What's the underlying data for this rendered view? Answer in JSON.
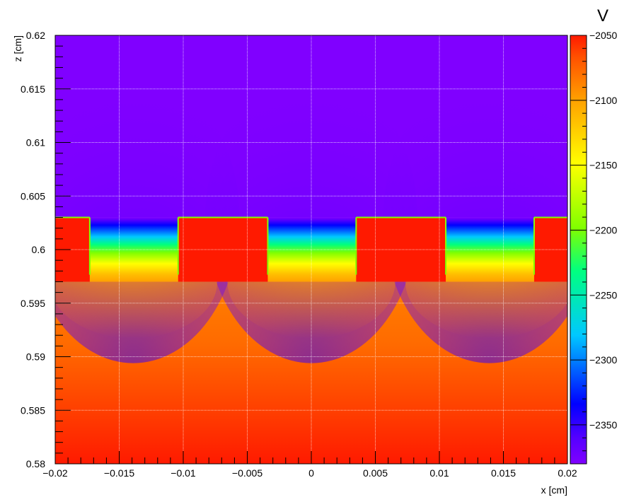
{
  "chart_data": {
    "type": "heatmap",
    "title": "",
    "xlabel": "x [cm]",
    "ylabel": "z [cm]",
    "xlim": [
      -0.02,
      0.02
    ],
    "ylim": [
      0.58,
      0.62
    ],
    "x_ticks": [
      -0.02,
      -0.015,
      -0.01,
      -0.005,
      0,
      0.005,
      0.01,
      0.015,
      0.02
    ],
    "x_tick_labels": [
      "−0.02",
      "−0.015",
      "−0.01",
      "−0.005",
      "0",
      "0.005",
      "0.01",
      "0.015",
      "0.02"
    ],
    "y_ticks": [
      0.58,
      0.585,
      0.59,
      0.595,
      0.6,
      0.605,
      0.61,
      0.615,
      0.62
    ],
    "y_tick_labels": [
      "0.58",
      "0.585",
      "0.59",
      "0.595",
      "0.6",
      "0.605",
      "0.61",
      "0.615",
      "0.62"
    ],
    "grid": true,
    "colorbar": {
      "unit": "V",
      "range": [
        -2380,
        -2050
      ],
      "ticks": [
        -2050,
        -2100,
        -2150,
        -2200,
        -2250,
        -2300,
        -2350
      ],
      "tick_labels": [
        "−2050",
        "−2100",
        "−2150",
        "−2200",
        "−2250",
        "−2300",
        "−2350"
      ],
      "palette": [
        "#8000ff",
        "#0000ff",
        "#00c8ff",
        "#00ff80",
        "#80ff00",
        "#ffff00",
        "#ffa000",
        "#ff5000",
        "#ff1a00"
      ]
    },
    "electrodes": [
      {
        "x": [
          -0.02,
          -0.0173
        ],
        "z": [
          0.597,
          0.603
        ]
      },
      {
        "x": [
          -0.0104,
          -0.0034
        ],
        "z": [
          0.597,
          0.603
        ]
      },
      {
        "x": [
          0.0035,
          0.0105
        ],
        "z": [
          0.597,
          0.603
        ]
      },
      {
        "x": [
          0.0174,
          0.02
        ],
        "z": [
          0.597,
          0.603
        ]
      }
    ],
    "wells": [
      {
        "x": [
          -0.0173,
          -0.0104
        ],
        "center": -0.0139
      },
      {
        "x": [
          -0.0034,
          0.0035
        ],
        "center": 0.0
      },
      {
        "x": [
          0.0105,
          0.0174
        ],
        "center": 0.0139
      }
    ]
  }
}
